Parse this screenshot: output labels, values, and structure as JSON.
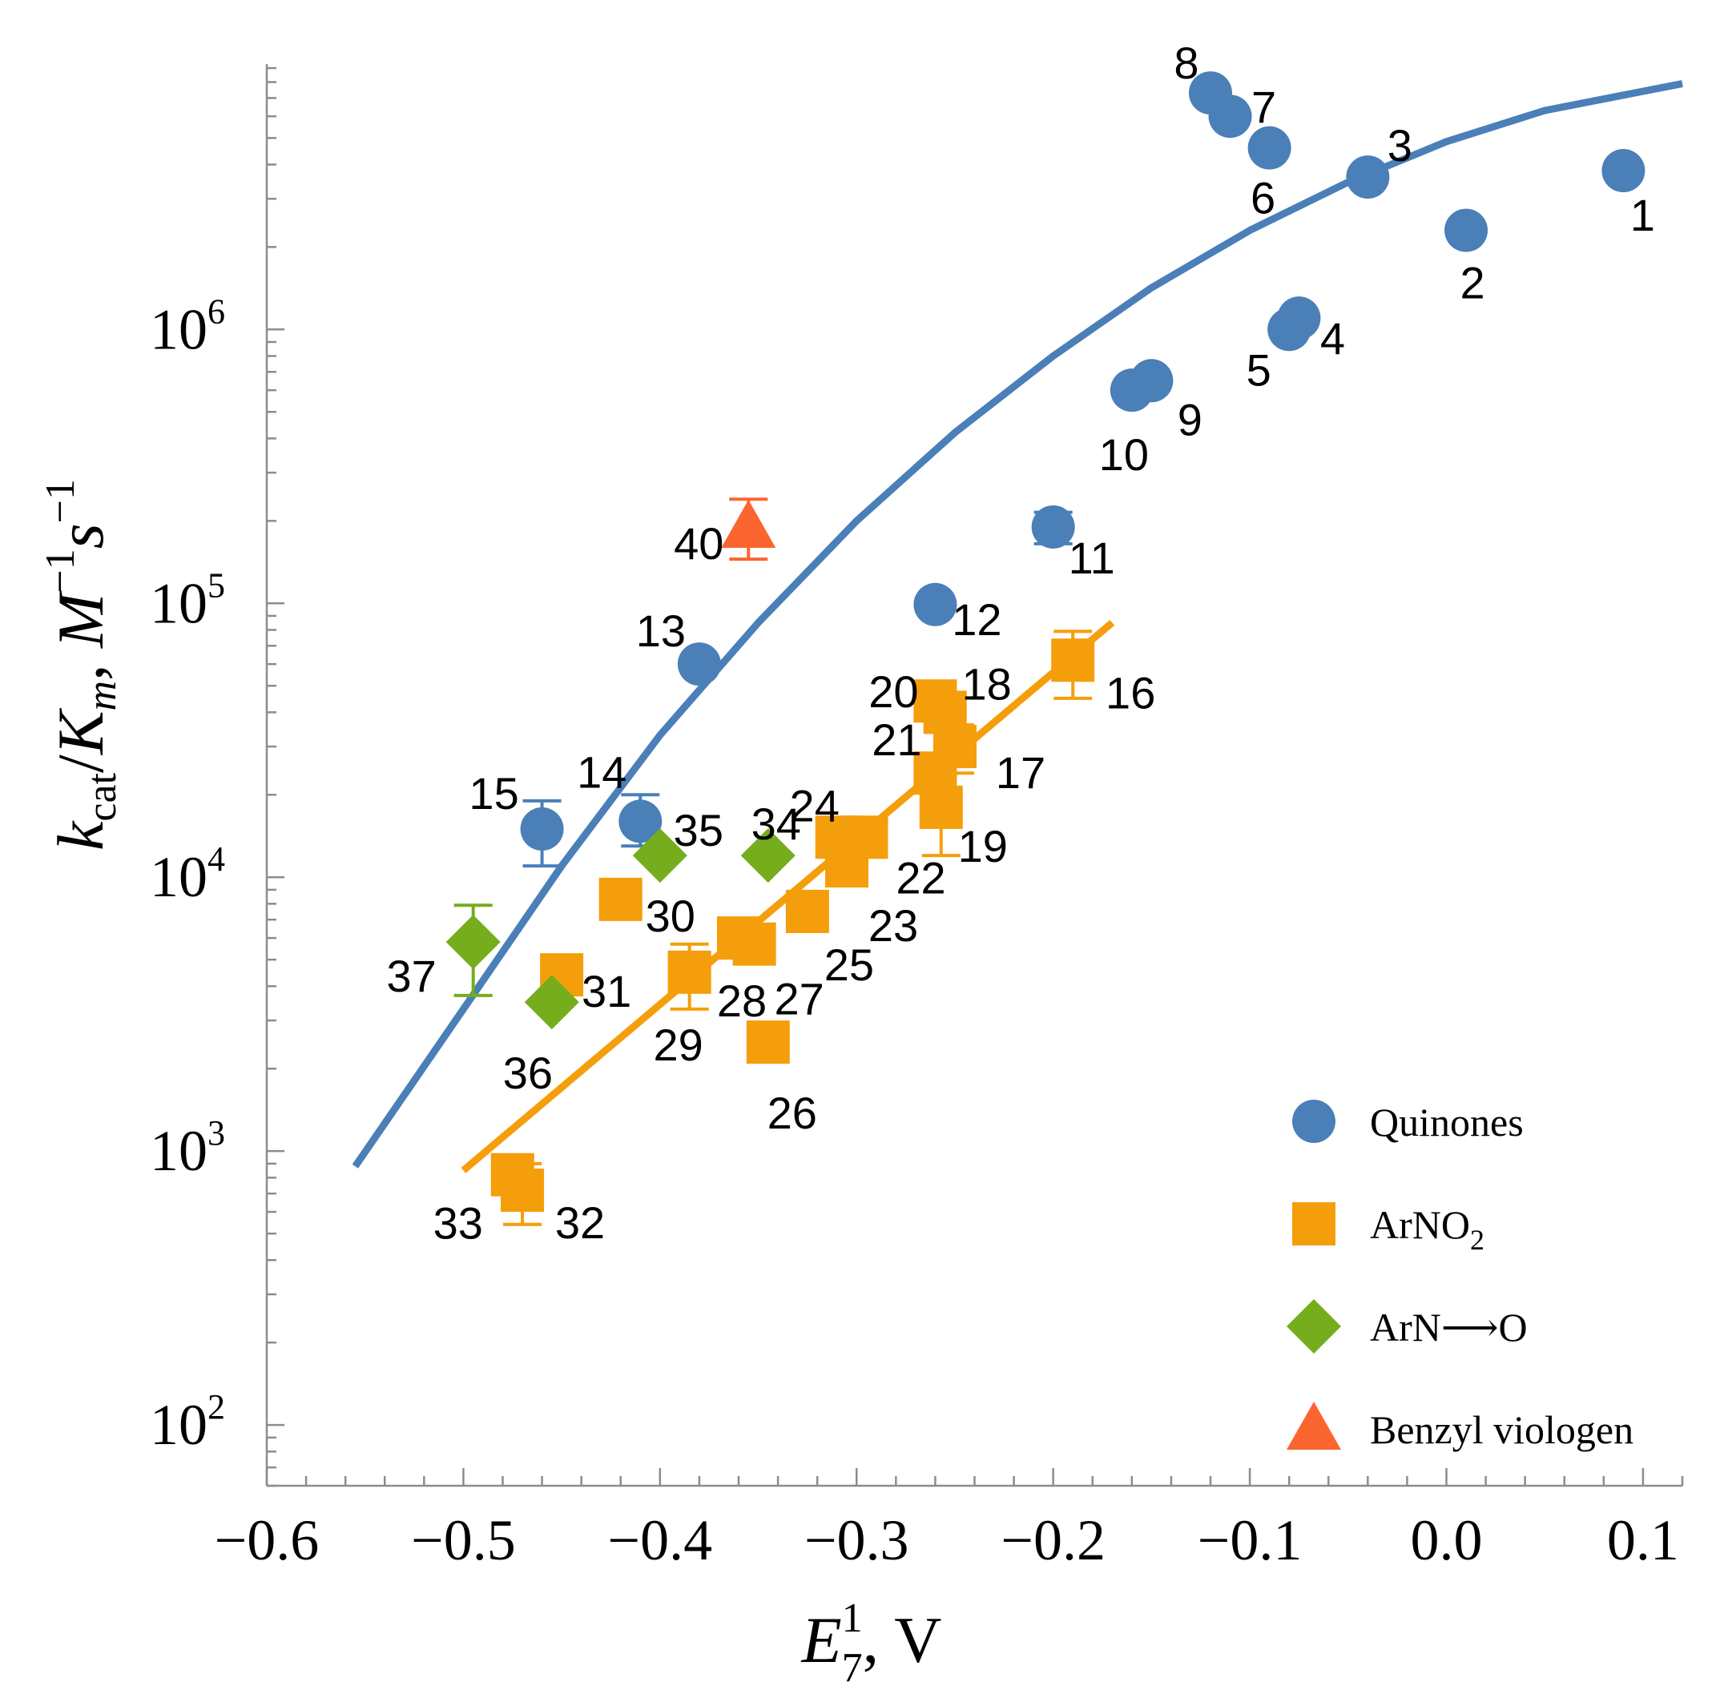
{
  "chart_data": {
    "type": "scatter",
    "xlabel": "E₇¹, V",
    "ylabel": "kcat/Km, M⁻¹s⁻¹",
    "xlim": [
      -0.6,
      0.12
    ],
    "ylim": [
      60,
      9000000
    ],
    "yscale": "log",
    "x_ticks": [
      "−0.6",
      "−0.5",
      "−0.4",
      "−0.3",
      "−0.2",
      "−0.1",
      "0.0",
      "0.1"
    ],
    "x_tick_values": [
      -0.6,
      -0.5,
      -0.4,
      -0.3,
      -0.2,
      -0.1,
      0.0,
      0.1
    ],
    "y_tick_values": [
      100,
      1000,
      10000,
      100000,
      1000000
    ],
    "y_ticks": [
      {
        "base": "10",
        "exp": "2"
      },
      {
        "base": "10",
        "exp": "3"
      },
      {
        "base": "10",
        "exp": "4"
      },
      {
        "base": "10",
        "exp": "5"
      },
      {
        "base": "10",
        "exp": "6"
      }
    ],
    "axis_title": {
      "x_var": "E",
      "x_sub": "7",
      "x_sup": "1",
      "x_unit": ", V",
      "y_k": "k",
      "y_cat": "cat",
      "y_slash": "/",
      "y_K": "K",
      "y_m": "m",
      "y_comma": ", ",
      "y_M": "M",
      "y_s": "s",
      "y_exp": "−1"
    },
    "legend": {
      "placement": "bottom-right",
      "items": [
        {
          "label": "Quinones",
          "marker": "circle",
          "color": "#4a7fb8"
        },
        {
          "label": "ArNO",
          "sub": "2",
          "marker": "square",
          "color": "#f59e0b"
        },
        {
          "label": "ArN⟶O",
          "marker": "diamond",
          "color": "#75ad1c"
        },
        {
          "label": "Benzyl viologen",
          "marker": "triangle",
          "color": "#fb6530"
        }
      ]
    },
    "series": [
      {
        "name": "Quinones",
        "marker": "circle",
        "color": "#4a7fb8",
        "points": [
          {
            "id": "1",
            "x": 0.09,
            "y": 3800000
          },
          {
            "id": "2",
            "x": 0.01,
            "y": 2300000
          },
          {
            "id": "3",
            "x": -0.04,
            "y": 3600000
          },
          {
            "id": "4",
            "x": -0.075,
            "y": 1100000
          },
          {
            "id": "5",
            "x": -0.08,
            "y": 1000000
          },
          {
            "id": "6",
            "x": -0.09,
            "y": 4600000
          },
          {
            "id": "7",
            "x": -0.11,
            "y": 6000000
          },
          {
            "id": "8",
            "x": -0.12,
            "y": 7300000
          },
          {
            "id": "9",
            "x": -0.15,
            "y": 650000
          },
          {
            "id": "10",
            "x": -0.16,
            "y": 600000
          },
          {
            "id": "11",
            "x": -0.2,
            "y": 190000,
            "err": [
              165000,
              215000
            ]
          },
          {
            "id": "12",
            "x": -0.26,
            "y": 99000
          },
          {
            "id": "13",
            "x": -0.38,
            "y": 60000
          },
          {
            "id": "14",
            "x": -0.41,
            "y": 16000,
            "err": [
              13000,
              20000
            ]
          },
          {
            "id": "15",
            "x": -0.46,
            "y": 15000,
            "err": [
              11000,
              19000
            ]
          }
        ]
      },
      {
        "name": "ArNO2",
        "marker": "square",
        "color": "#f59e0b",
        "points": [
          {
            "id": "16",
            "x": -0.19,
            "y": 62000,
            "err": [
              45000,
              79000
            ]
          },
          {
            "id": "17",
            "x": -0.25,
            "y": 30000,
            "err": [
              24000,
              36000
            ]
          },
          {
            "id": "18",
            "x": -0.255,
            "y": 40000
          },
          {
            "id": "19",
            "x": -0.257,
            "y": 18000,
            "err": [
              12000,
              24000
            ]
          },
          {
            "id": "20",
            "x": -0.26,
            "y": 44000
          },
          {
            "id": "21",
            "x": -0.26,
            "y": 24000
          },
          {
            "id": "22",
            "x": -0.295,
            "y": 14000
          },
          {
            "id": "23",
            "x": -0.305,
            "y": 11000
          },
          {
            "id": "24",
            "x": -0.31,
            "y": 14000
          },
          {
            "id": "25",
            "x": -0.325,
            "y": 7500
          },
          {
            "id": "26",
            "x": -0.345,
            "y": 2500
          },
          {
            "id": "27",
            "x": -0.352,
            "y": 5700
          },
          {
            "id": "28",
            "x": -0.36,
            "y": 6000
          },
          {
            "id": "29",
            "x": -0.385,
            "y": 4500,
            "err": [
              3300,
              5700
            ]
          },
          {
            "id": "30",
            "x": -0.42,
            "y": 8300
          },
          {
            "id": "31",
            "x": -0.45,
            "y": 4400
          },
          {
            "id": "32",
            "x": -0.47,
            "y": 720,
            "err": [
              540,
              900
            ]
          },
          {
            "id": "33",
            "x": -0.475,
            "y": 820
          }
        ]
      },
      {
        "name": "ArN⟶O",
        "marker": "diamond",
        "color": "#75ad1c",
        "points": [
          {
            "id": "34",
            "x": -0.345,
            "y": 12000
          },
          {
            "id": "35",
            "x": -0.4,
            "y": 12000
          },
          {
            "id": "36",
            "x": -0.455,
            "y": 3500
          },
          {
            "id": "37",
            "x": -0.495,
            "y": 5800,
            "err": [
              3700,
              7900
            ]
          }
        ]
      },
      {
        "name": "Benzyl viologen",
        "marker": "triangle",
        "color": "#fb6530",
        "points": [
          {
            "id": "40",
            "x": -0.355,
            "y": 190000,
            "err": [
              145000,
              240000
            ]
          }
        ]
      }
    ],
    "fits": [
      {
        "series": "Quinones",
        "color": "#4a7fb8",
        "type": "curve",
        "points": [
          [
            -0.555,
            880
          ],
          [
            -0.5,
            3300
          ],
          [
            -0.45,
            11000
          ],
          [
            -0.4,
            33000
          ],
          [
            -0.35,
            85000
          ],
          [
            -0.3,
            200000
          ],
          [
            -0.25,
            420000
          ],
          [
            -0.2,
            800000
          ],
          [
            -0.15,
            1420000
          ],
          [
            -0.1,
            2300000
          ],
          [
            -0.05,
            3450000
          ],
          [
            0.0,
            4850000
          ],
          [
            0.05,
            6300000
          ],
          [
            0.12,
            7900000
          ]
        ]
      },
      {
        "series": "ArNO2",
        "color": "#f59e0b",
        "type": "line",
        "points": [
          [
            -0.5,
            850
          ],
          [
            -0.17,
            85000
          ]
        ]
      }
    ]
  }
}
